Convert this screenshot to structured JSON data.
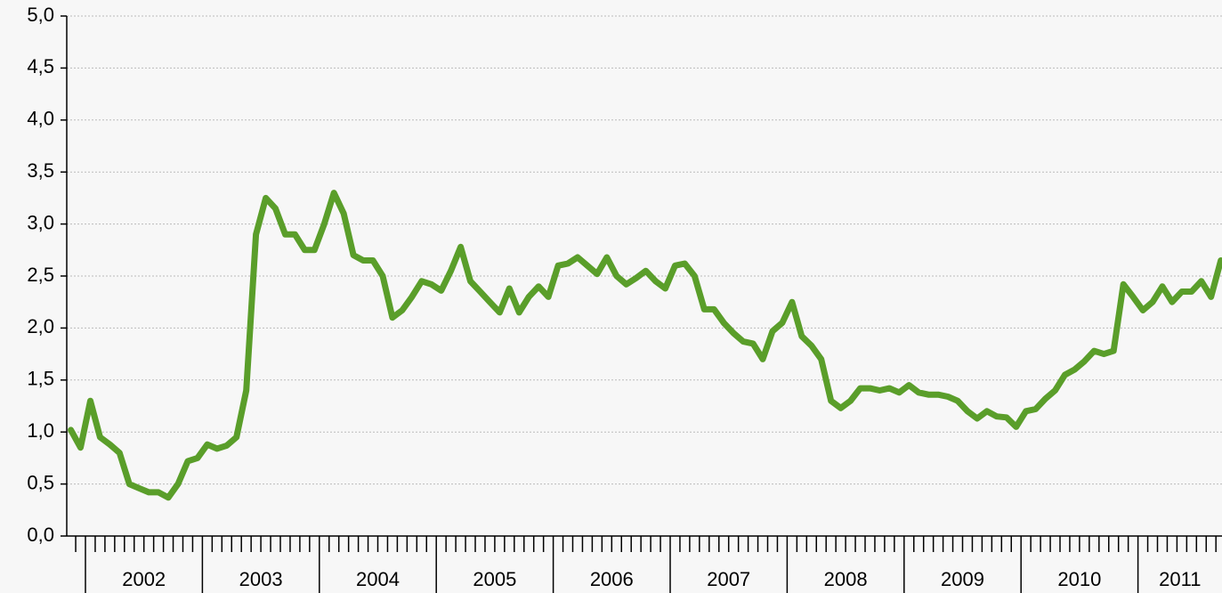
{
  "chart_data": {
    "type": "line",
    "year_labels": [
      "2002",
      "2003",
      "2004",
      "2005",
      "2006",
      "2007",
      "2008",
      "2009",
      "2010",
      "2011"
    ],
    "series": [
      {
        "color": "#5a9e2a",
        "values": [
          1.02,
          0.85,
          1.3,
          0.95,
          0.88,
          0.8,
          0.5,
          0.46,
          0.42,
          0.42,
          0.37,
          0.5,
          0.72,
          0.75,
          0.88,
          0.84,
          0.87,
          0.95,
          1.4,
          2.9,
          3.25,
          3.15,
          2.9,
          2.9,
          2.75,
          2.75,
          3.0,
          3.3,
          3.1,
          2.7,
          2.65,
          2.65,
          2.5,
          2.1,
          2.17,
          2.3,
          2.45,
          2.42,
          2.36,
          2.55,
          2.78,
          2.45,
          2.35,
          2.25,
          2.15,
          2.38,
          2.15,
          2.3,
          2.4,
          2.3,
          2.6,
          2.62,
          2.68,
          2.6,
          2.52,
          2.68,
          2.5,
          2.42,
          2.48,
          2.55,
          2.45,
          2.38,
          2.6,
          2.62,
          2.5,
          2.18,
          2.18,
          2.05,
          1.95,
          1.87,
          1.85,
          1.7,
          1.97,
          2.05,
          2.25,
          1.92,
          1.83,
          1.7,
          1.3,
          1.23,
          1.3,
          1.42,
          1.42,
          1.4,
          1.42,
          1.38,
          1.45,
          1.38,
          1.36,
          1.36,
          1.34,
          1.3,
          1.2,
          1.13,
          1.2,
          1.15,
          1.14,
          1.05,
          1.2,
          1.22,
          1.32,
          1.4,
          1.55,
          1.6,
          1.68,
          1.78,
          1.75,
          1.78,
          2.42,
          2.3,
          2.17,
          2.25,
          2.4,
          2.25,
          2.35,
          2.35,
          2.45,
          2.3,
          2.65
        ]
      }
    ],
    "ylim": [
      0,
      5
    ],
    "yticks": [
      {
        "value": 0,
        "label": "0,0"
      },
      {
        "value": 0.5,
        "label": "0,5"
      },
      {
        "value": 1,
        "label": "1,0"
      },
      {
        "value": 1.5,
        "label": "1,5"
      },
      {
        "value": 2,
        "label": "2,0"
      },
      {
        "value": 2.5,
        "label": "2,5"
      },
      {
        "value": 3,
        "label": "3,0"
      },
      {
        "value": 3.5,
        "label": "3,5"
      },
      {
        "value": 4,
        "label": "4,0"
      },
      {
        "value": 4.5,
        "label": "4,5"
      },
      {
        "value": 5,
        "label": "5,0"
      }
    ],
    "grid": true
  }
}
